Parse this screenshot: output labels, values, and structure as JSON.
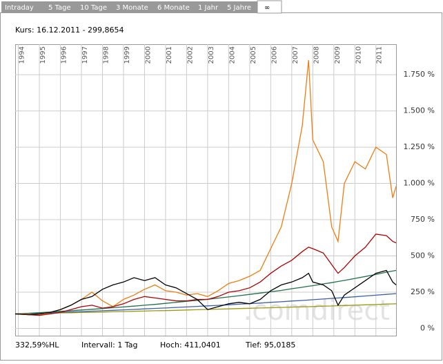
{
  "tabs": [
    "Intraday",
    "5 Tage",
    "10 Tage",
    "3 Monate",
    "6 Monate",
    "1 Jahr",
    "5 Jahre",
    "∞"
  ],
  "kurs": "Kurs: 16.12.2011 - 299,8654",
  "watermark": ".comdirect",
  "footer": [
    "332,59%HL",
    "Intervall: 1 Tag",
    "Hoch: 411,0401",
    "Tief: 95,0185"
  ],
  "chart_data": {
    "type": "line",
    "x": [
      1993.85,
      1994.5,
      1995,
      1995.5,
      1996,
      1996.5,
      1997,
      1997.5,
      1998,
      1998.5,
      1999,
      1999.5,
      2000,
      2000.5,
      2001,
      2001.5,
      2002,
      2002.5,
      2003,
      2003.5,
      2004,
      2004.5,
      2005,
      2005.5,
      2006,
      2006.5,
      2007,
      2007.5,
      2007.8,
      2008,
      2008.5,
      2008.9,
      2009.2,
      2009.5,
      2010,
      2010.5,
      2011,
      2011.5,
      2011.8,
      2011.96
    ],
    "xlim": [
      1993.85,
      2011.96
    ],
    "xticks": [
      1994,
      1995,
      1996,
      1997,
      1998,
      1999,
      2000,
      2001,
      2002,
      2003,
      2004,
      2005,
      2006,
      2007,
      2008,
      2009,
      2010,
      2011
    ],
    "ylim": [
      -50,
      1960
    ],
    "yticks": [
      {
        "value": 0,
        "label": "0 %"
      },
      {
        "value": 250,
        "label": "250 %"
      },
      {
        "value": 500,
        "label": "500 %"
      },
      {
        "value": 750,
        "label": "750 %"
      },
      {
        "value": 1000,
        "label": "1.000 %"
      },
      {
        "value": 1250,
        "label": "1.250 %"
      },
      {
        "value": 1500,
        "label": "1.500 %"
      },
      {
        "value": 1750,
        "label": "1.750 %"
      }
    ],
    "grid": true,
    "series": [
      {
        "color": "#9a9a10",
        "values": [
          100,
          102,
          103,
          105,
          107,
          108,
          110,
          111,
          113,
          115,
          116,
          118,
          120,
          122,
          123,
          125,
          127,
          129,
          131,
          133,
          135,
          137,
          139,
          141,
          143,
          145,
          147,
          149,
          150,
          151,
          154,
          155,
          157,
          158,
          160,
          163,
          165,
          168,
          169,
          170
        ]
      },
      {
        "color": "#3a5fa8",
        "values": [
          100,
          103,
          106,
          108,
          111,
          114,
          116,
          119,
          122,
          125,
          128,
          131,
          135,
          138,
          141,
          145,
          148,
          152,
          156,
          159,
          163,
          167,
          171,
          175,
          180,
          184,
          189,
          193,
          196,
          198,
          203,
          207,
          210,
          213,
          218,
          224,
          229,
          235,
          238,
          240
        ]
      },
      {
        "color": "#1f6f4a",
        "values": [
          100,
          105,
          109,
          113,
          118,
          122,
          127,
          132,
          137,
          143,
          148,
          154,
          160,
          166,
          173,
          180,
          187,
          194,
          201,
          209,
          217,
          226,
          235,
          244,
          253,
          262,
          274,
          284,
          291,
          295,
          307,
          316,
          324,
          331,
          345,
          358,
          372,
          388,
          396,
          400
        ]
      },
      {
        "color": "#f07c10",
        "values": [
          100,
          100,
          95,
          110,
          130,
          160,
          200,
          250,
          190,
          150,
          200,
          230,
          270,
          300,
          260,
          250,
          230,
          240,
          220,
          260,
          310,
          330,
          360,
          400,
          550,
          700,
          1000,
          1400,
          1850,
          1300,
          1150,
          700,
          600,
          1000,
          1150,
          1100,
          1250,
          1200,
          900,
          980
        ]
      },
      {
        "color": "#b00000",
        "values": [
          100,
          95,
          90,
          100,
          110,
          130,
          150,
          160,
          140,
          150,
          170,
          200,
          220,
          210,
          200,
          190,
          190,
          200,
          200,
          220,
          250,
          260,
          280,
          320,
          380,
          430,
          470,
          530,
          560,
          550,
          520,
          440,
          380,
          420,
          500,
          560,
          650,
          640,
          600,
          590
        ]
      },
      {
        "color": "#000000",
        "values": [
          100,
          95,
          100,
          110,
          130,
          160,
          200,
          220,
          270,
          300,
          320,
          350,
          330,
          350,
          300,
          280,
          240,
          200,
          130,
          150,
          170,
          180,
          170,
          200,
          260,
          300,
          320,
          350,
          380,
          320,
          300,
          260,
          160,
          230,
          280,
          330,
          380,
          400,
          320,
          300
        ]
      }
    ]
  }
}
